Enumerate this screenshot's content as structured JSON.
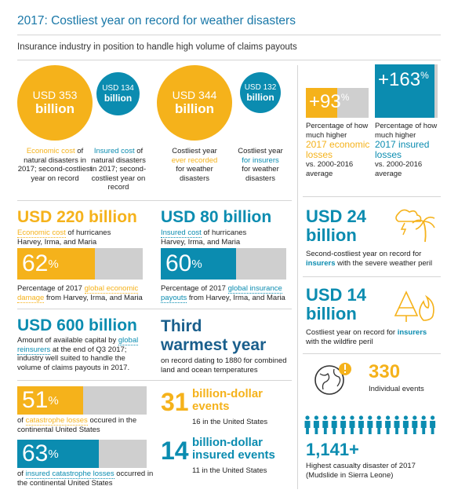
{
  "header": {
    "title": "2017: Costliest year on record for weather disasters",
    "subtitle": "Insurance industry in position to handle high volume of claims payouts"
  },
  "colors": {
    "yellow": "#f5b21b",
    "blue": "#0b8cb0",
    "grey": "#cfcfcf"
  },
  "circles": [
    {
      "line1": "USD 353",
      "line2": "billion",
      "hl": "Economic cost",
      "rest": "of natural disasters in 2017; second-costliest year on record"
    },
    {
      "line1": "USD 134",
      "line2": "billion",
      "hl": "Insured cost",
      "rest": "of natural disasters in 2017; second-costliest year on record"
    },
    {
      "line1": "USD 344",
      "line2": "billion",
      "pre": "Costliest year",
      "hl": "ever recorded",
      "rest": "for weather disasters"
    },
    {
      "line1": "USD 132",
      "line2": "billion",
      "pre": "Costliest year",
      "hl": "for insurers",
      "rest": "for weather disasters"
    }
  ],
  "pct_boxes": [
    {
      "value": "+93",
      "unit": "%",
      "fraction": 0.5,
      "c1": "Percentage of how much higher",
      "hl": "2017 economic losses",
      "c2": "vs. 2000-2016 average"
    },
    {
      "value": "+163",
      "unit": "%",
      "fraction": 0.95,
      "c1": "Percentage of how much higher",
      "hl": "2017 insured losses",
      "c2": "vs. 2000-2016 average"
    }
  ],
  "hurricanes": [
    {
      "amount": "USD 220 billion",
      "hl": "Economic cost",
      "rest": "of hurricanes",
      "names": "Harvey, Irma, and Maria",
      "pct": "62",
      "unit": "%",
      "fraction": 0.62,
      "c1": "Percentage of 2017",
      "chl": "global economic damage",
      "c2": "from Harvey, Irma, and Maria"
    },
    {
      "amount": "USD 80 billion",
      "hl": "Insured cost",
      "rest": "of hurricanes",
      "names": "Harvey, Irma, and Maria",
      "pct": "60",
      "unit": "%",
      "fraction": 0.6,
      "c1": "Percentage of 2017",
      "chl": "global insurance payouts",
      "c2": "from Harvey, Irma, and Maria"
    }
  ],
  "perils": [
    {
      "l1": "USD 24",
      "l2": "billion",
      "c1": "Second-costliest year on record for",
      "hl": "insurers",
      "c2": "with the severe weather peril",
      "icon": "storm-palm-icon"
    },
    {
      "l1": "USD 14",
      "l2": "billion",
      "c1": "Costliest year on record for",
      "hl": "insurers",
      "c2": "with the wildfire peril",
      "icon": "wildfire-tree-icon"
    }
  ],
  "capital": {
    "amount": "USD 600 billion",
    "c1": "Amount of available capital by",
    "hl": "global reinsurers",
    "c2": "at the end of Q3 2017; industry well suited to handle the volume of claims payouts in 2017."
  },
  "warmest": {
    "l1": "Third",
    "l2": "warmest year",
    "desc": "on record dating to 1880 for combined land and ocean temperatures"
  },
  "events_icon": {
    "value": "330",
    "label": "Individual events"
  },
  "cat_bars": [
    {
      "pct": "51",
      "unit": "%",
      "fraction": 0.51,
      "pre": "of",
      "hl": "catastrophe losses",
      "post": "occured in the continental United States"
    },
    {
      "pct": "63",
      "unit": "%",
      "fraction": 0.63,
      "pre": "of",
      "hl": "insured catastrophe losses",
      "post": "occurred in the continental United States"
    }
  ],
  "billion_events": [
    {
      "num": "31",
      "l1": "billion-dollar",
      "l2": "events",
      "sub": "16 in the United States"
    },
    {
      "num": "14",
      "l1": "billion-dollar",
      "l2": "insured events",
      "sub": "11 in the United States"
    }
  ],
  "casualty": {
    "value": "1,141+",
    "c1": "Highest casualty disaster of 2017",
    "c2": "(Mudslide in Sierra Leone)"
  }
}
